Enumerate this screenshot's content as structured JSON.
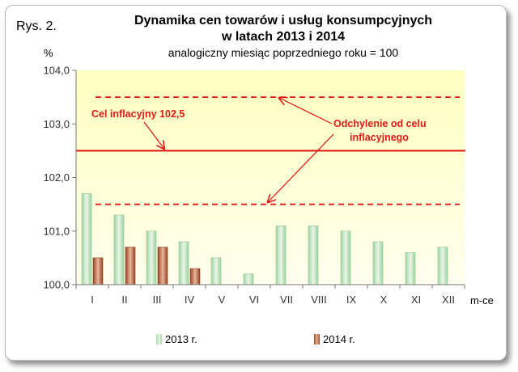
{
  "figure_label": "Rys. 2.",
  "title_line1": "Dynamika cen towarów i usług konsumpcyjnych",
  "title_line2": "w latach 2013 i 2014",
  "subtitle": "analogiczny miesiąc poprzedniego roku = 100",
  "y_unit": "%",
  "x_unit": "m-ce",
  "annotations": {
    "target": "Cel inflacyjny 102,5",
    "deviation_line1": "Odchylenie od celu",
    "deviation_line2": "inflacyjnego"
  },
  "colors": {
    "plot_bg_top": "#ffffc4",
    "plot_bg_bottom": "#ffffee",
    "bar_2013": "#b8e3b8",
    "bar_2014": "#c0704c",
    "reference_lines": "#e01010"
  },
  "chart_data": {
    "type": "bar",
    "categories": [
      "I",
      "II",
      "III",
      "IV",
      "V",
      "VI",
      "VII",
      "VIII",
      "IX",
      "X",
      "XI",
      "XII"
    ],
    "series": [
      {
        "name": "2013 r.",
        "values": [
          101.7,
          101.3,
          101.0,
          100.8,
          100.5,
          100.2,
          101.1,
          101.1,
          101.0,
          100.8,
          100.6,
          100.7
        ]
      },
      {
        "name": "2014 r.",
        "values": [
          100.5,
          100.7,
          100.7,
          100.3,
          null,
          null,
          null,
          null,
          null,
          null,
          null,
          null
        ]
      }
    ],
    "reference_lines": [
      {
        "value": 102.5,
        "style": "solid"
      },
      {
        "value": 103.5,
        "style": "dashed"
      },
      {
        "value": 101.5,
        "style": "dashed"
      }
    ],
    "ylim": [
      100.0,
      104.0
    ],
    "yticks": [
      "100,0",
      "101,0",
      "102,0",
      "103,0",
      "104,0"
    ],
    "ylabel": "%",
    "xlabel": "m-ce",
    "legend_position": "bottom",
    "grid": false
  }
}
